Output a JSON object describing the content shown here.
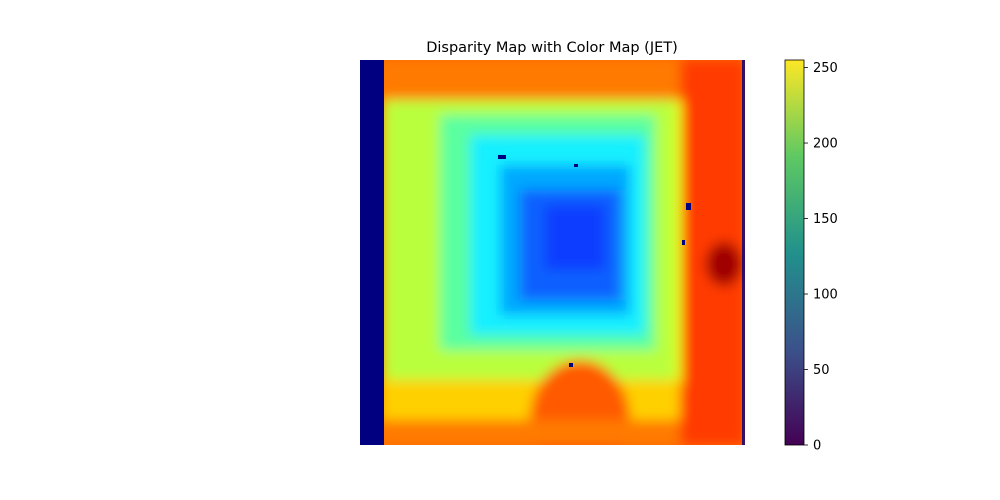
{
  "chart_data": {
    "type": "heatmap",
    "title": "Disparity Map with Color Map (JET)",
    "image_colormap": "jet",
    "colorbar": {
      "colormap": "viridis",
      "range": [
        0,
        255
      ],
      "ticks": [
        0,
        50,
        100,
        150,
        200,
        250
      ],
      "tick_labels": [
        "0",
        "50",
        "100",
        "150",
        "200",
        "250"
      ]
    },
    "axes_visible": false,
    "description_regions": [
      {
        "region": "left-edge-strip",
        "level": 0
      },
      {
        "region": "outer-frame-top",
        "level": 0.85
      },
      {
        "region": "outer-frame-right",
        "level": 0.9
      },
      {
        "region": "inner-ring",
        "level": 0.65
      },
      {
        "region": "middle-ring",
        "level": 0.38
      },
      {
        "region": "center",
        "level": 0.2
      },
      {
        "region": "bottom-mound",
        "level": 0.88
      }
    ]
  },
  "colors": {
    "jet": [
      "#000080",
      "#0000ff",
      "#00ffff",
      "#ffff00",
      "#ff0000",
      "#800000"
    ],
    "viridis": [
      "#440154",
      "#3b528b",
      "#21918c",
      "#5ec962",
      "#fde725"
    ]
  }
}
